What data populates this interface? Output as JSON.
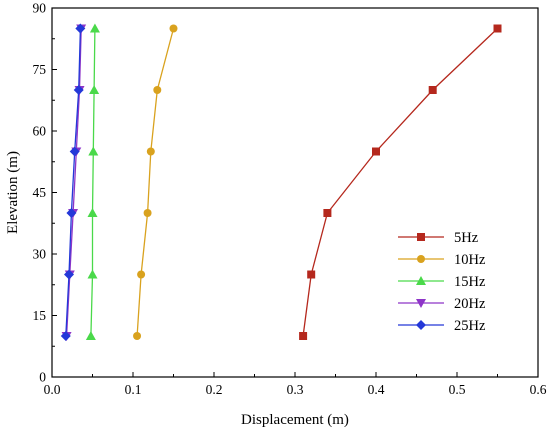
{
  "chart_data": {
    "type": "line",
    "title": "",
    "xlabel": "Displacement (m)",
    "ylabel": "Elevation (m)",
    "xlim": [
      0.0,
      0.6
    ],
    "ylim": [
      0,
      90
    ],
    "xticks": [
      "0.0",
      "0.1",
      "0.2",
      "0.3",
      "0.4",
      "0.5",
      "0.6"
    ],
    "yticks": [
      "0",
      "15",
      "30",
      "45",
      "60",
      "75",
      "90"
    ],
    "grid": false,
    "legend_position": "bottom-right",
    "series": [
      {
        "name": "5Hz",
        "color": "#b5281d",
        "marker": "square",
        "points": [
          [
            0.31,
            10
          ],
          [
            0.32,
            25
          ],
          [
            0.34,
            40
          ],
          [
            0.4,
            55
          ],
          [
            0.47,
            70
          ],
          [
            0.55,
            85
          ]
        ]
      },
      {
        "name": "10Hz",
        "color": "#d9a21e",
        "marker": "circle",
        "points": [
          [
            0.105,
            10
          ],
          [
            0.11,
            25
          ],
          [
            0.118,
            40
          ],
          [
            0.122,
            55
          ],
          [
            0.13,
            70
          ],
          [
            0.15,
            85
          ]
        ]
      },
      {
        "name": "15Hz",
        "color": "#4ad94a",
        "marker": "triangle-up",
        "points": [
          [
            0.048,
            10
          ],
          [
            0.05,
            25
          ],
          [
            0.05,
            40
          ],
          [
            0.051,
            55
          ],
          [
            0.052,
            70
          ],
          [
            0.053,
            85
          ]
        ]
      },
      {
        "name": "20Hz",
        "color": "#8e35c8",
        "marker": "triangle-down",
        "points": [
          [
            0.018,
            10
          ],
          [
            0.022,
            25
          ],
          [
            0.026,
            40
          ],
          [
            0.03,
            55
          ],
          [
            0.034,
            70
          ],
          [
            0.036,
            85
          ]
        ]
      },
      {
        "name": "25Hz",
        "color": "#2438d8",
        "marker": "diamond",
        "points": [
          [
            0.017,
            10
          ],
          [
            0.021,
            25
          ],
          [
            0.024,
            40
          ],
          [
            0.028,
            55
          ],
          [
            0.033,
            70
          ],
          [
            0.035,
            85
          ]
        ]
      }
    ]
  }
}
